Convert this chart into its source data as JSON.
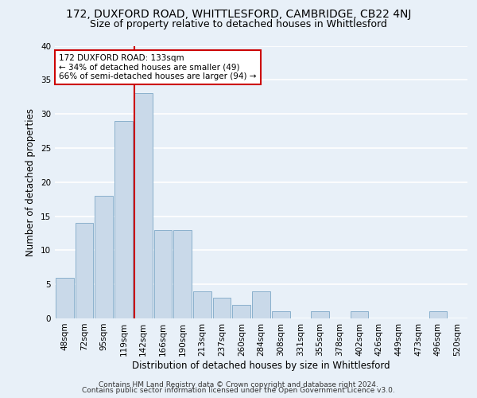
{
  "title": "172, DUXFORD ROAD, WHITTLESFORD, CAMBRIDGE, CB22 4NJ",
  "subtitle": "Size of property relative to detached houses in Whittlesford",
  "xlabel": "Distribution of detached houses by size in Whittlesford",
  "ylabel": "Number of detached properties",
  "footer1": "Contains HM Land Registry data © Crown copyright and database right 2024.",
  "footer2": "Contains public sector information licensed under the Open Government Licence v3.0.",
  "bar_labels": [
    "48sqm",
    "72sqm",
    "95sqm",
    "119sqm",
    "142sqm",
    "166sqm",
    "190sqm",
    "213sqm",
    "237sqm",
    "260sqm",
    "284sqm",
    "308sqm",
    "331sqm",
    "355sqm",
    "378sqm",
    "402sqm",
    "426sqm",
    "449sqm",
    "473sqm",
    "496sqm",
    "520sqm"
  ],
  "bar_values": [
    6,
    14,
    18,
    29,
    33,
    13,
    13,
    4,
    3,
    2,
    4,
    1,
    0,
    1,
    0,
    1,
    0,
    0,
    0,
    1,
    0
  ],
  "bar_color": "#c9d9e9",
  "bar_edge_color": "#8ab0cc",
  "ylim": [
    0,
    40
  ],
  "yticks": [
    0,
    5,
    10,
    15,
    20,
    25,
    30,
    35,
    40
  ],
  "vline_color": "#cc0000",
  "annotation_text": "172 DUXFORD ROAD: 133sqm\n← 34% of detached houses are smaller (49)\n66% of semi-detached houses are larger (94) →",
  "annotation_box_color": "#ffffff",
  "annotation_box_edge": "#cc0000",
  "bg_color": "#e8f0f8",
  "plot_bg_color": "#e8f0f8",
  "grid_color": "#ffffff",
  "title_fontsize": 10,
  "subtitle_fontsize": 9,
  "axis_label_fontsize": 8.5,
  "tick_fontsize": 7.5,
  "annotation_fontsize": 7.5,
  "footer_fontsize": 6.5
}
